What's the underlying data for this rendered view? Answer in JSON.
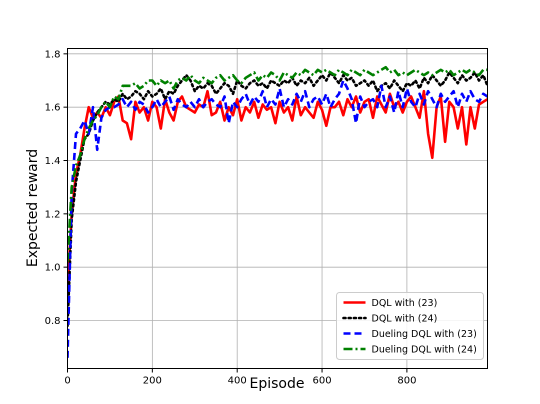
{
  "chart_data": {
    "type": "line",
    "title": "",
    "xlabel": "Episode",
    "ylabel": "Expected reward",
    "xlim": [
      0,
      990
    ],
    "ylim": [
      0.62,
      1.82
    ],
    "xticks": [
      0,
      200,
      400,
      600,
      800
    ],
    "yticks": [
      0.8,
      1.0,
      1.2,
      1.4,
      1.6,
      1.8
    ],
    "grid": true,
    "legend_position": "bottom-right",
    "x": [
      0,
      10,
      20,
      30,
      40,
      50,
      60,
      70,
      80,
      90,
      100,
      110,
      120,
      130,
      140,
      150,
      160,
      170,
      180,
      190,
      200,
      210,
      220,
      230,
      240,
      250,
      260,
      270,
      280,
      290,
      300,
      310,
      320,
      330,
      340,
      350,
      360,
      370,
      380,
      390,
      400,
      410,
      420,
      430,
      440,
      450,
      460,
      470,
      480,
      490,
      500,
      510,
      520,
      530,
      540,
      550,
      560,
      570,
      580,
      590,
      600,
      610,
      620,
      630,
      640,
      650,
      660,
      670,
      680,
      690,
      700,
      710,
      720,
      730,
      740,
      750,
      760,
      770,
      780,
      790,
      800,
      810,
      820,
      830,
      840,
      850,
      860,
      870,
      880,
      890,
      900,
      910,
      920,
      930,
      940,
      950,
      960,
      970,
      980,
      990
    ],
    "series": [
      {
        "name": "DQL with (23)",
        "color": "#ff0000",
        "style": "solid",
        "values": [
          0.92,
          1.2,
          1.35,
          1.42,
          1.52,
          1.6,
          1.56,
          1.58,
          1.56,
          1.6,
          1.57,
          1.62,
          1.64,
          1.55,
          1.54,
          1.48,
          1.62,
          1.58,
          1.6,
          1.55,
          1.62,
          1.6,
          1.52,
          1.63,
          1.58,
          1.55,
          1.62,
          1.64,
          1.6,
          1.59,
          1.58,
          1.61,
          1.6,
          1.66,
          1.57,
          1.58,
          1.62,
          1.55,
          1.6,
          1.57,
          1.63,
          1.55,
          1.6,
          1.58,
          1.62,
          1.56,
          1.61,
          1.59,
          1.6,
          1.54,
          1.62,
          1.58,
          1.6,
          1.55,
          1.64,
          1.57,
          1.6,
          1.58,
          1.56,
          1.62,
          1.59,
          1.53,
          1.6,
          1.6,
          1.62,
          1.57,
          1.63,
          1.6,
          1.64,
          1.58,
          1.62,
          1.63,
          1.56,
          1.64,
          1.61,
          1.58,
          1.65,
          1.6,
          1.62,
          1.58,
          1.62,
          1.64,
          1.6,
          1.56,
          1.66,
          1.5,
          1.41,
          1.6,
          1.64,
          1.47,
          1.62,
          1.6,
          1.52,
          1.6,
          1.46,
          1.6,
          1.52,
          1.61,
          1.62,
          1.63
        ]
      },
      {
        "name": "DQL with (24)",
        "color": "#000000",
        "style": "dotted",
        "values": [
          0.78,
          1.18,
          1.32,
          1.4,
          1.48,
          1.5,
          1.55,
          1.58,
          1.6,
          1.62,
          1.61,
          1.63,
          1.62,
          1.65,
          1.63,
          1.64,
          1.66,
          1.65,
          1.63,
          1.66,
          1.64,
          1.65,
          1.67,
          1.63,
          1.66,
          1.65,
          1.68,
          1.7,
          1.72,
          1.7,
          1.66,
          1.68,
          1.67,
          1.69,
          1.68,
          1.65,
          1.67,
          1.69,
          1.68,
          1.65,
          1.7,
          1.68,
          1.67,
          1.69,
          1.7,
          1.68,
          1.69,
          1.67,
          1.7,
          1.69,
          1.68,
          1.7,
          1.69,
          1.71,
          1.68,
          1.7,
          1.69,
          1.71,
          1.68,
          1.7,
          1.72,
          1.7,
          1.73,
          1.71,
          1.69,
          1.72,
          1.7,
          1.71,
          1.68,
          1.69,
          1.7,
          1.68,
          1.7,
          1.66,
          1.68,
          1.69,
          1.67,
          1.7,
          1.68,
          1.66,
          1.69,
          1.68,
          1.7,
          1.67,
          1.71,
          1.69,
          1.72,
          1.7,
          1.68,
          1.7,
          1.73,
          1.71,
          1.69,
          1.72,
          1.7,
          1.71,
          1.73,
          1.7,
          1.72,
          1.68
        ]
      },
      {
        "name": "Dueling DQL with (23)",
        "color": "#0000ff",
        "style": "dashed",
        "values": [
          0.66,
          1.28,
          1.5,
          1.52,
          1.55,
          1.5,
          1.6,
          1.44,
          1.56,
          1.59,
          1.6,
          1.6,
          1.61,
          1.63,
          1.6,
          1.62,
          1.59,
          1.62,
          1.61,
          1.58,
          1.6,
          1.63,
          1.6,
          1.62,
          1.64,
          1.59,
          1.63,
          1.61,
          1.6,
          1.62,
          1.6,
          1.63,
          1.6,
          1.62,
          1.63,
          1.61,
          1.6,
          1.64,
          1.54,
          1.62,
          1.6,
          1.63,
          1.65,
          1.61,
          1.64,
          1.62,
          1.66,
          1.6,
          1.63,
          1.61,
          1.67,
          1.6,
          1.63,
          1.61,
          1.65,
          1.62,
          1.66,
          1.6,
          1.63,
          1.64,
          1.61,
          1.65,
          1.6,
          1.63,
          1.65,
          1.7,
          1.67,
          1.63,
          1.54,
          1.64,
          1.6,
          1.62,
          1.63,
          1.6,
          1.68,
          1.6,
          1.64,
          1.58,
          1.66,
          1.6,
          1.67,
          1.62,
          1.6,
          1.65,
          1.61,
          1.66,
          1.63,
          1.6,
          1.65,
          1.62,
          1.64,
          1.66,
          1.6,
          1.65,
          1.62,
          1.66,
          1.63,
          1.62,
          1.65,
          1.64
        ]
      },
      {
        "name": "Dueling DQL with (24)",
        "color": "#008000",
        "style": "dashdot",
        "values": [
          1.02,
          1.3,
          1.38,
          1.42,
          1.48,
          1.52,
          1.55,
          1.57,
          1.6,
          1.62,
          1.6,
          1.64,
          1.63,
          1.68,
          1.68,
          1.68,
          1.69,
          1.67,
          1.68,
          1.7,
          1.7,
          1.68,
          1.7,
          1.69,
          1.7,
          1.67,
          1.7,
          1.71,
          1.7,
          1.72,
          1.7,
          1.69,
          1.71,
          1.7,
          1.69,
          1.71,
          1.72,
          1.7,
          1.71,
          1.72,
          1.7,
          1.69,
          1.71,
          1.72,
          1.73,
          1.7,
          1.72,
          1.71,
          1.73,
          1.72,
          1.7,
          1.73,
          1.72,
          1.71,
          1.73,
          1.72,
          1.74,
          1.73,
          1.72,
          1.74,
          1.73,
          1.74,
          1.73,
          1.72,
          1.74,
          1.73,
          1.72,
          1.74,
          1.73,
          1.72,
          1.74,
          1.73,
          1.72,
          1.73,
          1.74,
          1.75,
          1.73,
          1.74,
          1.72,
          1.73,
          1.72,
          1.73,
          1.74,
          1.73,
          1.72,
          1.73,
          1.72,
          1.73,
          1.74,
          1.73,
          1.74,
          1.72,
          1.73,
          1.74,
          1.73,
          1.74,
          1.73,
          1.72,
          1.74,
          1.74
        ]
      }
    ]
  }
}
